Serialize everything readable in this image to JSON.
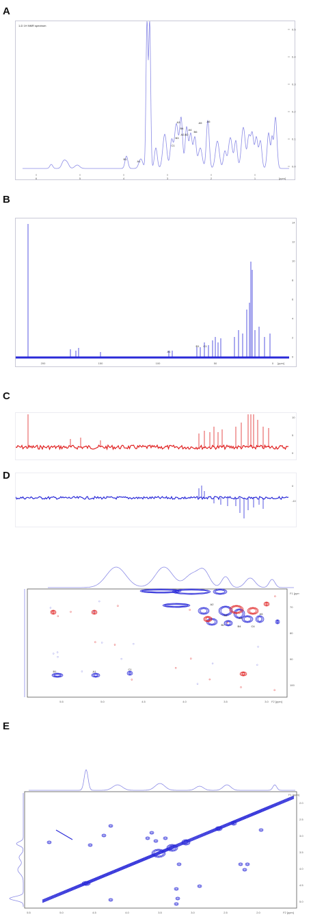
{
  "panels": {
    "a": {
      "letter": "A"
    },
    "b": {
      "letter": "B"
    },
    "c": {
      "letter": "C"
    },
    "d": {
      "letter": "D"
    },
    "e": {
      "letter": "E"
    }
  },
  "colors": {
    "blue": "#2a2ad8",
    "light_blue": "#8a8ae6",
    "red": "#e02020",
    "frame": "#c9c9d6"
  },
  "chart_data": [
    {
      "panel": "A",
      "type": "line",
      "title": "",
      "xlabel": "[ppm]",
      "x_tick_labels": [
        "6",
        "5",
        "4",
        "3",
        "2",
        "1"
      ],
      "y_tick_labels": [
        "0.5",
        "0.4",
        "0.3",
        "0.2",
        "0.1",
        "0.0"
      ],
      "peak_labels": [
        "B1",
        "A1",
        "C1",
        "B3",
        "A3",
        "B4",
        "A2,B2",
        "A4",
        "B6",
        "A5",
        "A6"
      ],
      "header_text": "1-D 1H NMR spectrum"
    },
    {
      "panel": "B",
      "type": "line",
      "xlabel": "[ppm]",
      "x_tick_labels": [
        "200",
        "150",
        "100",
        "50",
        "0"
      ],
      "y_tick_labels": [
        "14",
        "12",
        "10",
        "8",
        "6",
        "4",
        "2",
        "0"
      ],
      "peak_labels": [
        "A1",
        "B1",
        "C1"
      ]
    },
    {
      "panel": "C",
      "type": "line",
      "y_tick_labels": [
        "10",
        "5",
        "0"
      ]
    },
    {
      "panel": "D",
      "type": "line",
      "y_tick_labels": [
        "0",
        "-10"
      ]
    },
    {
      "panel": "D-HSQC",
      "type": "scatter",
      "xlabel": "F2 [ppm]",
      "ylabel": "F1 [ppm]",
      "x_tick_labels": [
        "5.5",
        "5.0",
        "4.5",
        "4.0",
        "3.5",
        "3.0"
      ],
      "y_tick_labels": [
        "70",
        "80",
        "90",
        "100"
      ],
      "cross_peak_labels": [
        "B1",
        "A1",
        "C1",
        "A2",
        "A3",
        "A4",
        "A5",
        "B2",
        "B4",
        "C4"
      ]
    },
    {
      "panel": "E",
      "type": "scatter",
      "xlabel": "F2 [ppm]",
      "ylabel": "F1 [ppm]",
      "x_tick_labels": [
        "5.5",
        "5.0",
        "4.5",
        "4.0",
        "3.5",
        "3.0",
        "2.5",
        "2.0"
      ],
      "y_tick_labels": [
        "2.0",
        "2.5",
        "3.0",
        "3.5",
        "4.0",
        "4.5",
        "5.0"
      ]
    }
  ]
}
